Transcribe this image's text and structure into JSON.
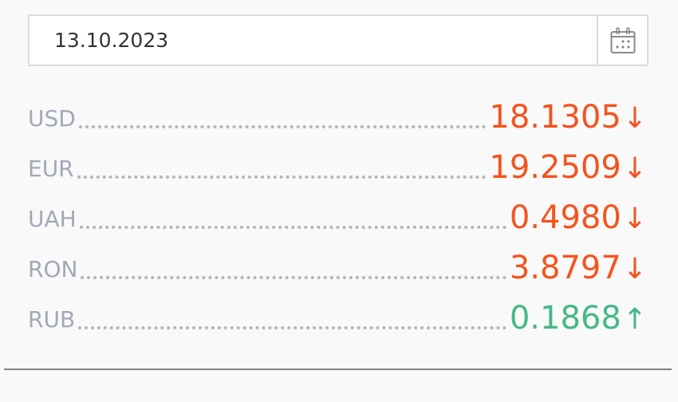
{
  "date_input": {
    "value": "13.10.2023",
    "icon": "calendar-icon"
  },
  "rates": [
    {
      "currency": "USD",
      "value": "18.1305",
      "trend": "down",
      "arrow": "↓"
    },
    {
      "currency": "EUR",
      "value": "19.2509",
      "trend": "down",
      "arrow": "↓"
    },
    {
      "currency": "UAH",
      "value": "0.4980",
      "trend": "down",
      "arrow": "↓"
    },
    {
      "currency": "RON",
      "value": "3.8797",
      "trend": "down",
      "arrow": "↓"
    },
    {
      "currency": "RUB",
      "value": "0.1868",
      "trend": "up",
      "arrow": "↑"
    }
  ],
  "colors": {
    "down": "#f5531e",
    "up": "#45b888",
    "label": "#a1a8b6"
  }
}
